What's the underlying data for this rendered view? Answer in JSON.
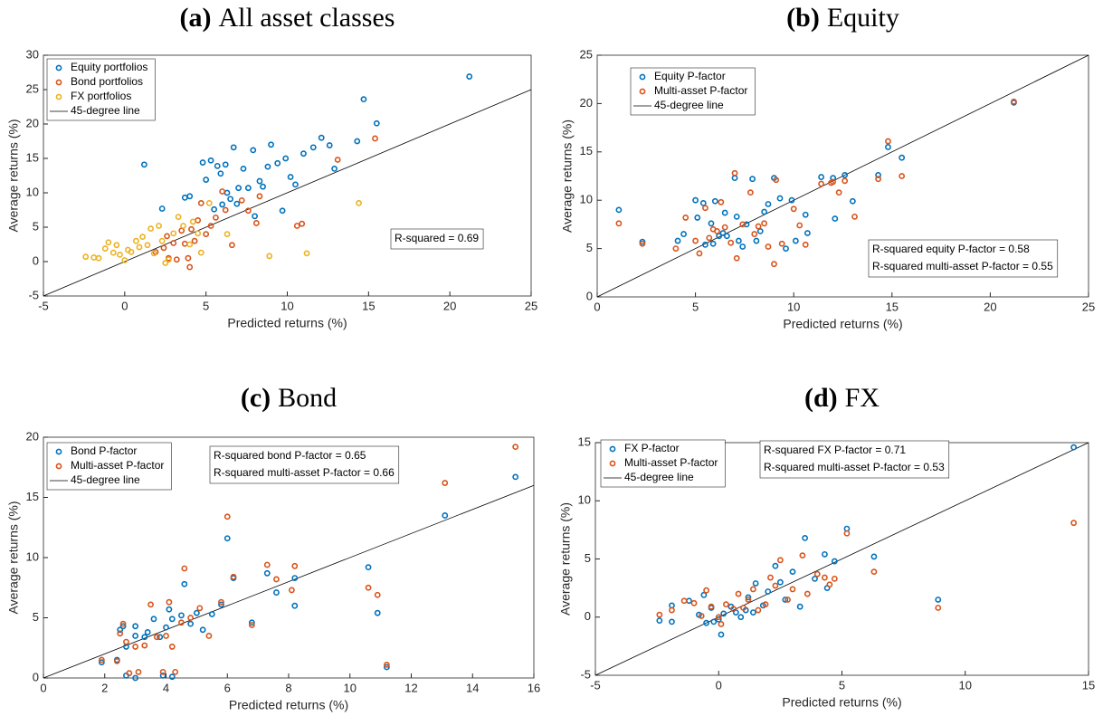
{
  "chart_data": [
    {
      "type": "scatter",
      "panel_label": "(a)",
      "title": "All asset classes",
      "x_label": "Predicted returns (%)",
      "y_label": "Average returns (%)",
      "xlim": [
        -5,
        25
      ],
      "xticks": [
        -5,
        0,
        5,
        10,
        15,
        20,
        25
      ],
      "ylim": [
        -5,
        30
      ],
      "yticks": [
        -5,
        0,
        5,
        10,
        15,
        20,
        25,
        30
      ],
      "legend": "upper left",
      "reference_line": {
        "name": "45-degree line",
        "color": "#000000"
      },
      "annotations": [
        "R-squared = 0.69"
      ],
      "series": [
        {
          "name": "Equity portfolios",
          "color": "#0072BD",
          "x": [
            1.2,
            2.3,
            3.7,
            4.0,
            4.8,
            5.0,
            5.3,
            5.5,
            5.7,
            5.9,
            6.0,
            6.2,
            6.3,
            6.5,
            6.7,
            6.9,
            7.0,
            7.3,
            7.6,
            7.9,
            8.0,
            8.3,
            8.5,
            8.8,
            9.0,
            9.4,
            9.7,
            9.9,
            10.2,
            10.5,
            11.0,
            11.6,
            12.1,
            12.6,
            12.9,
            14.3,
            14.7,
            15.5,
            21.2
          ],
          "y": [
            14.1,
            7.7,
            9.3,
            9.5,
            14.4,
            11.9,
            14.7,
            7.6,
            13.9,
            12.8,
            8.3,
            14.1,
            10.0,
            9.1,
            16.6,
            8.4,
            10.7,
            13.5,
            10.7,
            16.2,
            6.6,
            11.7,
            10.9,
            13.8,
            17.0,
            14.3,
            7.4,
            15.0,
            12.3,
            11.2,
            15.7,
            16.6,
            18.0,
            16.9,
            13.5,
            17.5,
            23.6,
            20.1,
            26.9
          ]
        },
        {
          "name": "Bond portfolios",
          "color": "#D95319",
          "x": [
            1.9,
            2.4,
            2.6,
            2.7,
            3.0,
            3.2,
            3.5,
            3.7,
            3.9,
            4.0,
            4.1,
            4.3,
            4.5,
            4.7,
            5.0,
            5.3,
            5.6,
            6.0,
            6.2,
            6.6,
            7.2,
            7.6,
            8.1,
            8.3,
            10.6,
            10.9,
            13.1,
            15.4
          ],
          "y": [
            1.4,
            2.0,
            3.7,
            0.5,
            2.7,
            0.3,
            4.5,
            2.6,
            0.5,
            -0.8,
            4.7,
            3.0,
            6.0,
            8.5,
            4.0,
            5.2,
            6.4,
            10.2,
            7.5,
            2.4,
            8.9,
            7.4,
            5.6,
            9.5,
            5.2,
            5.5,
            14.8,
            17.9
          ]
        },
        {
          "name": "FX portfolios",
          "color": "#EDB120",
          "x": [
            -2.4,
            -1.9,
            -1.6,
            -1.2,
            -1.0,
            -0.7,
            -0.5,
            -0.3,
            0.0,
            0.2,
            0.4,
            0.7,
            0.9,
            1.1,
            1.4,
            1.6,
            1.8,
            2.1,
            2.3,
            2.5,
            2.7,
            3.0,
            3.3,
            3.6,
            4.0,
            4.2,
            4.5,
            4.7,
            5.2,
            6.3,
            8.9,
            11.2,
            14.4
          ],
          "y": [
            0.7,
            0.6,
            0.5,
            1.9,
            2.8,
            1.3,
            2.4,
            1.0,
            0.2,
            1.7,
            1.4,
            3.0,
            2.1,
            3.6,
            2.4,
            4.8,
            1.2,
            5.2,
            3.0,
            -0.2,
            0.3,
            4.1,
            6.5,
            5.2,
            2.5,
            5.8,
            4.1,
            1.3,
            8.5,
            4.0,
            0.8,
            1.2,
            8.5
          ]
        }
      ]
    },
    {
      "type": "scatter",
      "panel_label": "(b)",
      "title": "Equity",
      "x_label": "Predicted returns (%)",
      "y_label": "Average returns (%)",
      "xlim": [
        0,
        25
      ],
      "xticks": [
        0,
        5,
        10,
        15,
        20,
        25
      ],
      "ylim": [
        0,
        25
      ],
      "yticks": [
        0,
        5,
        10,
        15,
        20,
        25
      ],
      "legend": "upper left",
      "reference_line": {
        "name": "45-degree line",
        "color": "#000000"
      },
      "annotations": [
        "R-squared equity P-factor = 0.58",
        "R-squared multi-asset P-factor = 0.55"
      ],
      "series": [
        {
          "name": "Equity P-factor",
          "color": "#0072BD",
          "x": [
            1.1,
            2.3,
            4.1,
            4.4,
            5.0,
            5.1,
            5.4,
            5.5,
            5.8,
            5.9,
            6.0,
            6.2,
            6.4,
            6.5,
            6.6,
            7.0,
            7.1,
            7.2,
            7.4,
            7.6,
            7.9,
            8.1,
            8.3,
            8.5,
            8.7,
            9.0,
            9.3,
            9.6,
            9.9,
            10.1,
            10.6,
            10.7,
            11.4,
            12.0,
            12.1,
            12.6,
            13.0,
            14.3,
            14.8,
            15.5,
            21.2
          ],
          "y": [
            9.0,
            5.7,
            5.8,
            6.5,
            10.0,
            8.2,
            9.7,
            5.4,
            7.6,
            5.5,
            9.9,
            6.3,
            6.6,
            8.7,
            6.3,
            12.3,
            8.3,
            5.8,
            5.2,
            7.5,
            12.2,
            5.8,
            6.8,
            8.8,
            9.6,
            12.3,
            10.2,
            5.0,
            10.0,
            5.8,
            8.5,
            6.6,
            12.4,
            12.3,
            8.1,
            12.6,
            9.9,
            12.6,
            15.5,
            14.4,
            20.1
          ]
        },
        {
          "name": "Multi-asset P-factor",
          "color": "#D95319",
          "x": [
            1.1,
            2.3,
            4.0,
            4.5,
            5.0,
            5.2,
            5.5,
            5.7,
            5.9,
            6.1,
            6.3,
            6.5,
            6.8,
            7.0,
            7.1,
            7.4,
            7.8,
            8.0,
            8.2,
            8.5,
            8.7,
            9.0,
            9.1,
            9.4,
            10.0,
            10.3,
            10.6,
            11.4,
            11.9,
            12.0,
            12.3,
            12.6,
            13.1,
            14.3,
            14.8,
            15.5,
            21.2
          ],
          "y": [
            7.6,
            5.5,
            5.0,
            8.2,
            5.8,
            4.5,
            9.2,
            6.1,
            7.0,
            6.8,
            9.8,
            7.2,
            5.6,
            12.8,
            4.0,
            7.5,
            10.8,
            6.5,
            7.3,
            7.6,
            5.2,
            3.4,
            12.1,
            5.5,
            9.1,
            7.4,
            5.4,
            11.7,
            11.8,
            11.9,
            10.8,
            12.0,
            8.3,
            12.2,
            16.1,
            12.5,
            20.2
          ]
        }
      ]
    },
    {
      "type": "scatter",
      "panel_label": "(c)",
      "title": "Bond",
      "x_label": "Predicted returns (%)",
      "y_label": "Average returns (%)",
      "xlim": [
        0,
        16
      ],
      "xticks": [
        0,
        2,
        4,
        6,
        8,
        10,
        12,
        14,
        16
      ],
      "ylim": [
        0,
        20
      ],
      "yticks": [
        0,
        5,
        10,
        15,
        20
      ],
      "legend": "upper left",
      "reference_line": {
        "name": "45-degree line",
        "color": "#000000"
      },
      "annotations": [
        "R-squared bond P-factor = 0.65",
        "R-squared multi-asset P-factor = 0.66"
      ],
      "series": [
        {
          "name": "Bond P-factor",
          "color": "#0072BD",
          "x": [
            1.9,
            2.4,
            2.5,
            2.6,
            2.7,
            2.7,
            3.0,
            3.0,
            3.0,
            3.3,
            3.4,
            3.6,
            3.8,
            3.9,
            4.0,
            4.1,
            4.2,
            4.2,
            4.5,
            4.6,
            4.8,
            5.0,
            5.2,
            5.5,
            5.8,
            6.0,
            6.2,
            6.8,
            7.3,
            7.6,
            8.2,
            8.2,
            10.6,
            10.9,
            11.2,
            13.1,
            15.4
          ],
          "y": [
            1.3,
            1.5,
            4.0,
            4.3,
            2.6,
            0.2,
            4.3,
            3.5,
            0.0,
            3.4,
            3.8,
            4.9,
            3.4,
            0.2,
            4.2,
            5.7,
            4.9,
            0.1,
            5.2,
            7.8,
            4.5,
            5.4,
            4.0,
            5.3,
            6.1,
            11.6,
            8.3,
            4.6,
            8.7,
            7.1,
            8.3,
            6.0,
            9.2,
            5.4,
            0.9,
            13.5,
            16.7
          ]
        },
        {
          "name": "Multi-asset P-factor",
          "color": "#D95319",
          "x": [
            1.9,
            2.4,
            2.5,
            2.6,
            2.7,
            2.8,
            3.0,
            3.1,
            3.3,
            3.5,
            3.7,
            3.9,
            4.0,
            4.1,
            4.2,
            4.3,
            4.5,
            4.6,
            4.8,
            5.1,
            5.4,
            5.8,
            6.0,
            6.2,
            6.8,
            7.3,
            7.6,
            8.1,
            8.2,
            10.6,
            10.9,
            11.2,
            13.1,
            15.4
          ],
          "y": [
            1.5,
            1.4,
            3.7,
            4.5,
            3.0,
            0.4,
            2.6,
            0.5,
            2.7,
            6.1,
            3.4,
            0.5,
            3.5,
            6.3,
            2.6,
            0.5,
            4.6,
            9.1,
            5.0,
            5.8,
            3.5,
            6.3,
            13.4,
            8.4,
            4.4,
            9.4,
            8.2,
            7.3,
            9.3,
            7.5,
            6.9,
            1.1,
            16.2,
            19.2
          ]
        }
      ]
    },
    {
      "type": "scatter",
      "panel_label": "(d)",
      "title": "FX",
      "x_label": "Predicted returns (%)",
      "y_label": "Average returns (%)",
      "xlim": [
        -5,
        15
      ],
      "xticks": [
        -5,
        0,
        5,
        10,
        15
      ],
      "ylim": [
        -5,
        15
      ],
      "yticks": [
        -5,
        0,
        5,
        10,
        15
      ],
      "legend": "upper left",
      "reference_line": {
        "name": "45-degree line",
        "color": "#000000"
      },
      "annotations": [
        "R-squared FX P-factor = 0.71",
        "R-squared multi-asset P-factor = 0.53"
      ],
      "series": [
        {
          "name": "FX P-factor",
          "color": "#0072BD",
          "x": [
            -2.4,
            -1.9,
            -1.9,
            -1.2,
            -0.8,
            -0.6,
            -0.5,
            -0.3,
            -0.2,
            0.0,
            0.1,
            0.2,
            0.5,
            0.7,
            0.9,
            1.1,
            1.2,
            1.4,
            1.5,
            1.8,
            2.0,
            2.3,
            2.5,
            2.7,
            3.0,
            3.3,
            3.5,
            3.9,
            4.3,
            4.4,
            4.7,
            5.2,
            6.3,
            8.9,
            14.4
          ],
          "y": [
            -0.3,
            -0.4,
            1.0,
            1.4,
            0.2,
            1.9,
            -0.5,
            0.8,
            -0.4,
            -0.2,
            -1.5,
            0.3,
            0.9,
            0.4,
            0.0,
            0.6,
            1.7,
            0.4,
            2.9,
            1.0,
            2.2,
            4.4,
            3.0,
            1.5,
            3.9,
            0.9,
            6.8,
            3.3,
            5.4,
            2.5,
            4.8,
            7.6,
            5.2,
            1.5,
            14.6
          ]
        },
        {
          "name": "Multi-asset P-factor",
          "color": "#D95319",
          "x": [
            -2.4,
            -1.9,
            -1.4,
            -1.0,
            -0.7,
            -0.5,
            -0.3,
            0.0,
            0.1,
            0.3,
            0.6,
            0.8,
            1.0,
            1.2,
            1.4,
            1.6,
            1.9,
            2.1,
            2.3,
            2.5,
            2.8,
            3.0,
            3.4,
            3.6,
            4.0,
            4.3,
            4.5,
            4.7,
            5.2,
            6.3,
            8.9,
            14.4
          ],
          "y": [
            0.2,
            0.6,
            1.4,
            1.2,
            0.1,
            2.3,
            0.9,
            0.0,
            -0.6,
            1.1,
            0.7,
            2.0,
            0.8,
            1.5,
            2.4,
            0.6,
            1.1,
            3.4,
            2.7,
            4.9,
            1.5,
            2.4,
            5.3,
            2.0,
            3.7,
            3.4,
            2.8,
            3.3,
            7.2,
            3.9,
            0.8,
            8.1
          ]
        }
      ]
    }
  ]
}
